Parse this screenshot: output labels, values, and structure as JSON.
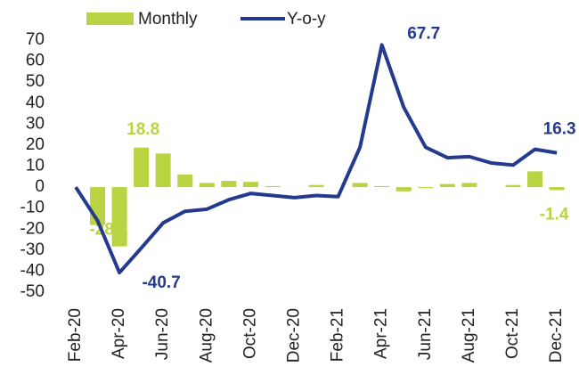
{
  "chart_data": {
    "type": "bar-line",
    "categories": [
      "Feb-20",
      null,
      "Apr-20",
      null,
      "Jun-20",
      null,
      "Aug-20",
      null,
      "Oct-20",
      null,
      "Dec-20",
      null,
      "Feb-21",
      null,
      "Apr-21",
      null,
      "Jun-21",
      null,
      "Aug-21",
      null,
      "Oct-21",
      null,
      "Dec-21"
    ],
    "series": [
      {
        "name": "Monthly",
        "type": "bar",
        "color": "#b9d443",
        "values": [
          0,
          -18,
          -28.2,
          18.8,
          16,
          6,
          2,
          3,
          2.5,
          0.5,
          0,
          1,
          0,
          2,
          0.5,
          -2,
          -0.5,
          1.5,
          2,
          0,
          1,
          7.5,
          -1.4
        ]
      },
      {
        "name": "Y-o-y",
        "type": "line",
        "color": "#243a8c",
        "values": [
          0,
          -16,
          -40.7,
          -29,
          -17,
          -11.5,
          -10.5,
          -6,
          -3,
          -4,
          -5,
          -4,
          -4.5,
          19,
          67.7,
          38,
          19,
          14,
          14.5,
          11.5,
          10.5,
          18,
          16.3
        ]
      }
    ],
    "ylim": [
      -50,
      70
    ],
    "yticks": [
      -50,
      -40,
      -30,
      -20,
      -10,
      0,
      10,
      20,
      30,
      40,
      50,
      60,
      70
    ]
  }
}
